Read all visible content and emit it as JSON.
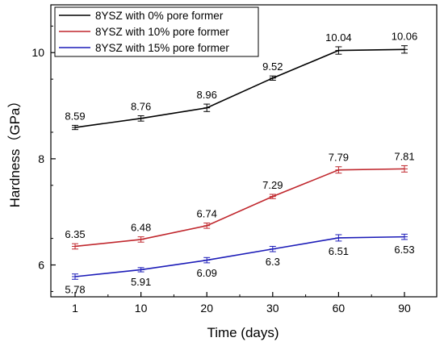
{
  "chart_data": {
    "type": "line",
    "title": "",
    "xlabel": "Time (days)",
    "ylabel": "Hardness（GPa）",
    "categories": [
      "1",
      "10",
      "20",
      "30",
      "60",
      "90"
    ],
    "ylim": [
      5.4,
      10.9
    ],
    "yticks": [
      6,
      8,
      10
    ],
    "grid": false,
    "legend_position": "top-left",
    "series": [
      {
        "name": "8YSZ with 0% pore former",
        "color": "#000000",
        "values": [
          8.59,
          8.76,
          8.96,
          9.52,
          10.04,
          10.06
        ],
        "errors": [
          0.04,
          0.05,
          0.07,
          0.04,
          0.07,
          0.07
        ],
        "labels": [
          "8.59",
          "8.76",
          "8.96",
          "9.52",
          "10.04",
          "10.06"
        ],
        "label_side": "above"
      },
      {
        "name": "8YSZ with 10% pore former",
        "color": "#c0272d",
        "values": [
          6.35,
          6.48,
          6.74,
          7.29,
          7.79,
          7.81
        ],
        "errors": [
          0.05,
          0.05,
          0.05,
          0.04,
          0.06,
          0.06
        ],
        "labels": [
          "6.35",
          "6.48",
          "6.74",
          "7.29",
          "7.79",
          "7.81"
        ],
        "label_side": "above"
      },
      {
        "name": "8YSZ with 15% pore former",
        "color": "#1c1cb8",
        "values": [
          5.78,
          5.91,
          6.09,
          6.3,
          6.51,
          6.53
        ],
        "errors": [
          0.05,
          0.04,
          0.05,
          0.05,
          0.06,
          0.05
        ],
        "labels": [
          "5.78",
          "5.91",
          "6.09",
          "6.3",
          "6.51",
          "6.53"
        ],
        "label_side": "below"
      }
    ]
  }
}
